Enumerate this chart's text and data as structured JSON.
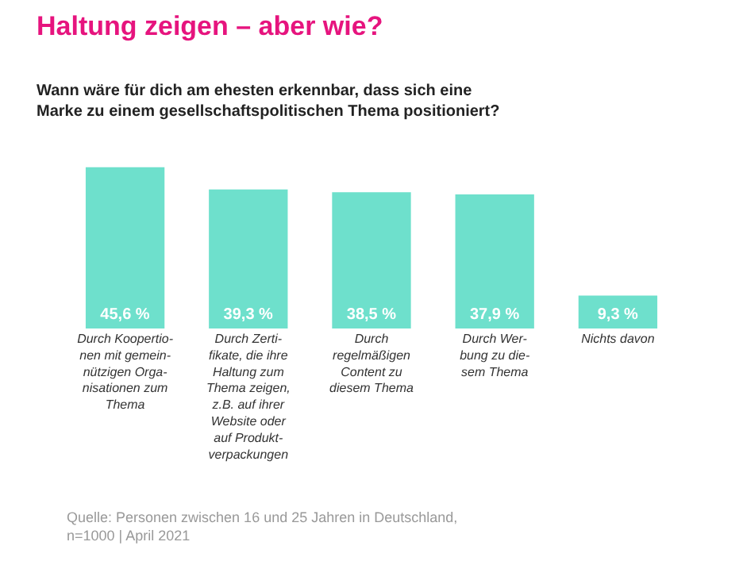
{
  "chart_data": {
    "type": "bar",
    "title": "Haltung zeigen – aber wie?",
    "subtitle": "Wann wäre für dich am ehesten erkennbar, dass sich eine\nMarke zu einem gesellschaftspolitischen Thema positioniert?",
    "categories": [
      "Durch Koopertio-\nnen mit gemein-\nnützigen Orga-\nnisationen zum\nThema",
      "Durch Zerti-\nfikate, die ihre\nHaltung zum\nThema zeigen,\nz.B. auf ihrer\nWebsite oder\nauf Produkt-\nverpackungen",
      "Durch\nregelmäßigen\nContent zu\ndiesem Thema",
      "Durch Wer-\nbung zu die-\nsem Thema",
      "Nichts davon"
    ],
    "values": [
      45.6,
      39.3,
      38.5,
      37.9,
      9.3
    ],
    "value_labels": [
      "45,6 %",
      "39,3 %",
      "38,5 %",
      "37,9 %",
      "9,3 %"
    ],
    "color": "#6ee0cc",
    "annotations": [
      "Quelle: Personen zwischen 16 und 25 Jahren in Deutschland,\nn=1000 | April 2021"
    ]
  }
}
